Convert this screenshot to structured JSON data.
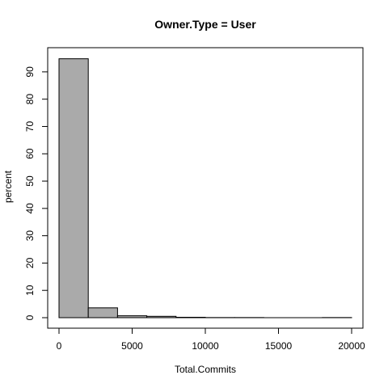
{
  "chart_data": {
    "type": "bar",
    "title": "Owner.Type = User",
    "xlabel": "Total.Commits",
    "ylabel": "percent",
    "bin_edges": [
      0,
      2000,
      4000,
      6000,
      8000,
      10000,
      12000,
      14000,
      16000,
      18000,
      20000
    ],
    "values": [
      94.8,
      3.6,
      0.7,
      0.5,
      0.15,
      0.05,
      0.05,
      0.0,
      0.0,
      0.05
    ],
    "xlim": [
      0,
      20000
    ],
    "ylim": [
      0,
      95
    ],
    "x_ticks": [
      0,
      5000,
      10000,
      15000,
      20000
    ],
    "y_ticks": [
      0,
      10,
      20,
      30,
      40,
      50,
      60,
      70,
      80,
      90
    ],
    "grid": false,
    "colors": {
      "bar_fill": "#aaaaaa",
      "bar_stroke": "#000000"
    }
  }
}
